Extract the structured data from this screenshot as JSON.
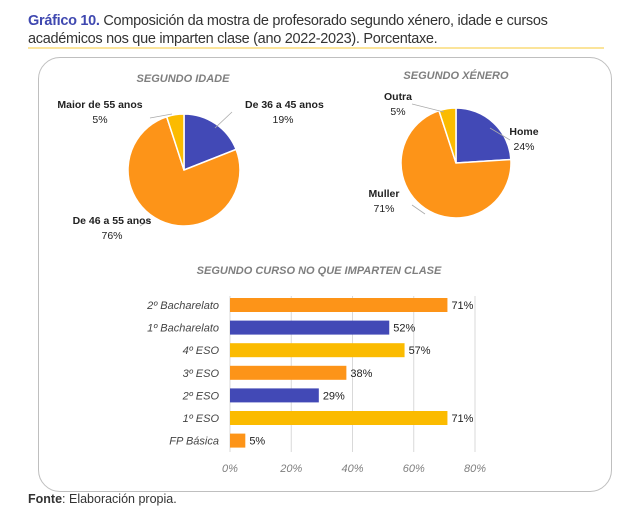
{
  "caption": {
    "label": "Gráfico 10.",
    "text": " Composición da mostra de profesorado segundo xénero, idade e cursos académicos nos que imparten clase (ano 2022-2023). Porcentaxe."
  },
  "source": {
    "label": "Fonte",
    "text": ": Elaboración propia."
  },
  "colors": {
    "blue": "#4249b6",
    "orange": "#fd9418",
    "yellow": "#fbbb00"
  },
  "chart_data": [
    {
      "type": "pie",
      "title": "SEGUNDO IDADE",
      "slices": [
        {
          "label": "De 36 a 45 anos",
          "value": 19,
          "color": "#4249b6"
        },
        {
          "label": "De 46 a 55 anos",
          "value": 76,
          "color": "#fd9418"
        },
        {
          "label": "Maior de 55 anos",
          "value": 5,
          "color": "#fbbb00"
        }
      ]
    },
    {
      "type": "pie",
      "title": "SEGUNDO XÉNERO",
      "slices": [
        {
          "label": "Home",
          "value": 24,
          "color": "#4249b6"
        },
        {
          "label": "Muller",
          "value": 71,
          "color": "#fd9418"
        },
        {
          "label": "Outra",
          "value": 5,
          "color": "#fbbb00"
        }
      ]
    },
    {
      "type": "bar",
      "orientation": "horizontal",
      "title": "SEGUNDO CURSO NO QUE IMPARTEN CLASE",
      "categories": [
        "2º Bacharelato",
        "1º Bacharelato",
        "4º ESO",
        "3º ESO",
        "2º ESO",
        "1º ESO",
        "FP Básica"
      ],
      "values": [
        71,
        52,
        57,
        38,
        29,
        71,
        5
      ],
      "colors": [
        "#fd9418",
        "#4249b6",
        "#fbbb00",
        "#fd9418",
        "#4249b6",
        "#fbbb00",
        "#fd9418"
      ],
      "xlim": [
        0,
        80
      ],
      "xticks": [
        "0%",
        "20%",
        "40%",
        "60%",
        "80%"
      ],
      "grid": true
    }
  ]
}
